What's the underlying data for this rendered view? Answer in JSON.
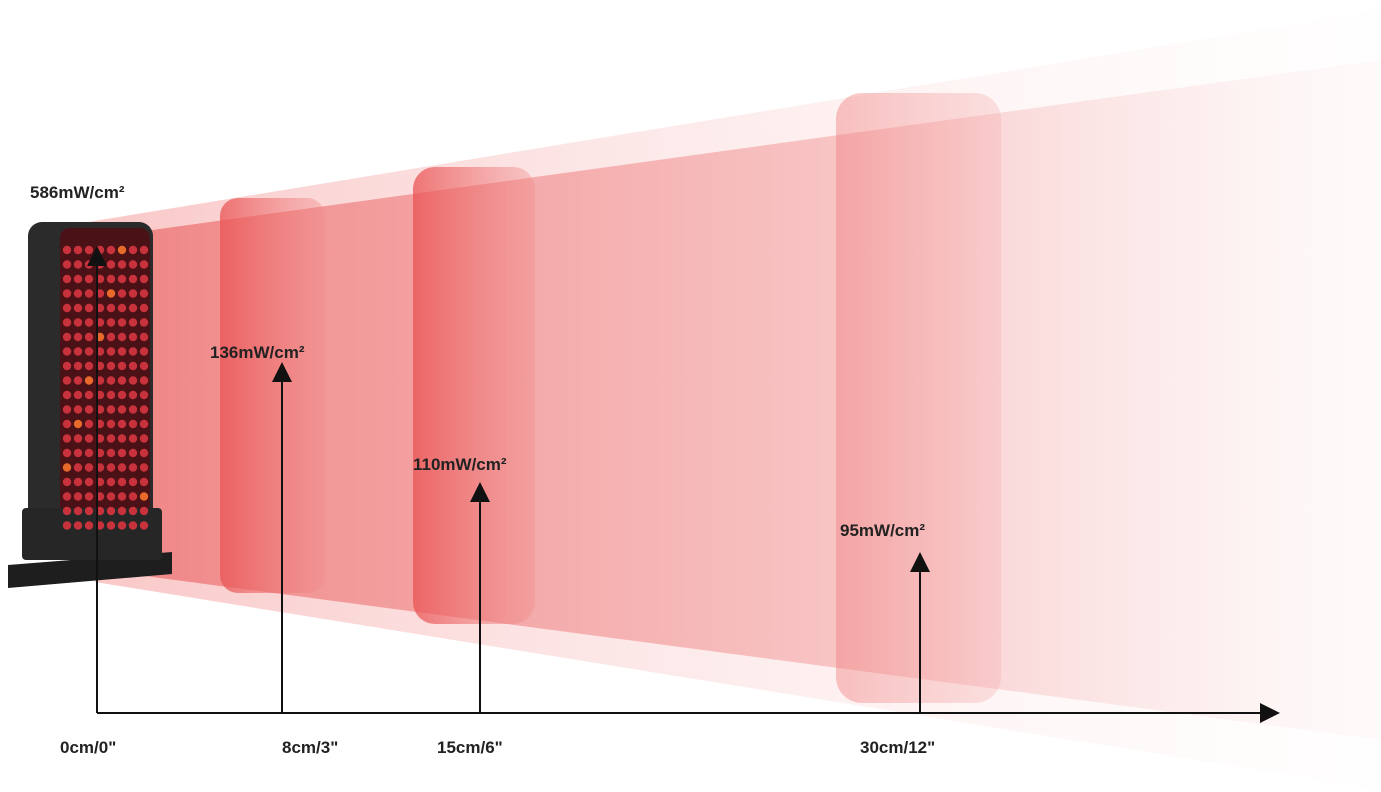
{
  "measurements": [
    {
      "irradiance": "586mW/cm²",
      "distance": "0cm/0\""
    },
    {
      "irradiance": "136mW/cm²",
      "distance": "8cm/3\""
    },
    {
      "irradiance": "110mW/cm²",
      "distance": "15cm/6\""
    },
    {
      "irradiance": "95mW/cm²",
      "distance": "30cm/12\""
    }
  ]
}
